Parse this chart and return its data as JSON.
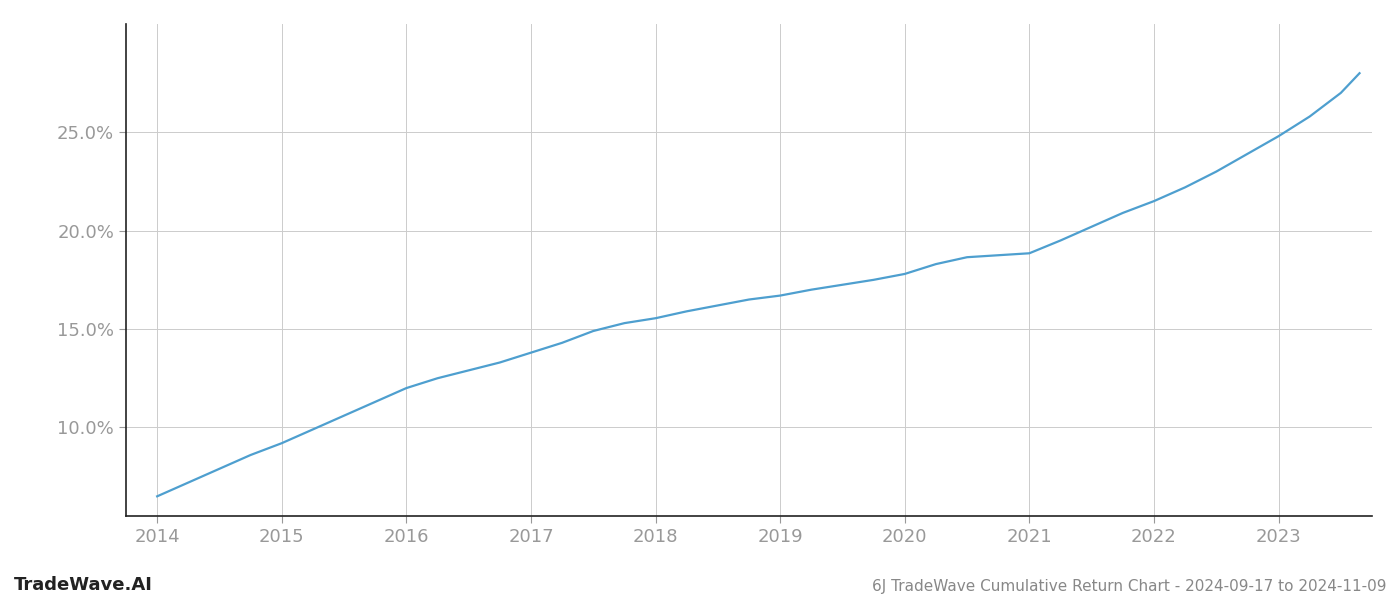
{
  "title": "6J TradeWave Cumulative Return Chart - 2024-09-17 to 2024-11-09",
  "watermark": "TradeWave.AI",
  "line_color": "#4e9fcf",
  "background_color": "#ffffff",
  "grid_color": "#cccccc",
  "x_values": [
    2014.0,
    2014.25,
    2014.5,
    2014.75,
    2015.0,
    2015.25,
    2015.5,
    2015.75,
    2016.0,
    2016.25,
    2016.5,
    2016.75,
    2017.0,
    2017.25,
    2017.5,
    2017.75,
    2018.0,
    2018.25,
    2018.5,
    2018.75,
    2019.0,
    2019.25,
    2019.5,
    2019.75,
    2020.0,
    2020.25,
    2020.5,
    2020.75,
    2021.0,
    2021.25,
    2021.5,
    2021.75,
    2022.0,
    2022.25,
    2022.5,
    2022.75,
    2023.0,
    2023.25,
    2023.5,
    2023.65
  ],
  "y_values": [
    6.5,
    7.2,
    7.9,
    8.6,
    9.2,
    9.9,
    10.6,
    11.3,
    12.0,
    12.5,
    12.9,
    13.3,
    13.8,
    14.3,
    14.9,
    15.3,
    15.55,
    15.9,
    16.2,
    16.5,
    16.7,
    17.0,
    17.25,
    17.5,
    17.8,
    18.3,
    18.65,
    18.75,
    18.85,
    19.5,
    20.2,
    20.9,
    21.5,
    22.2,
    23.0,
    23.9,
    24.8,
    25.8,
    27.0,
    28.0
  ],
  "xlim": [
    2013.75,
    2023.75
  ],
  "ylim": [
    5.5,
    30.5
  ],
  "yticks": [
    10.0,
    15.0,
    20.0,
    25.0
  ],
  "xticks": [
    2014,
    2015,
    2016,
    2017,
    2018,
    2019,
    2020,
    2021,
    2022,
    2023
  ],
  "tick_label_color": "#999999",
  "spine_color": "#222222",
  "title_fontsize": 11,
  "watermark_fontsize": 13,
  "tick_fontsize": 13,
  "line_width": 1.6
}
